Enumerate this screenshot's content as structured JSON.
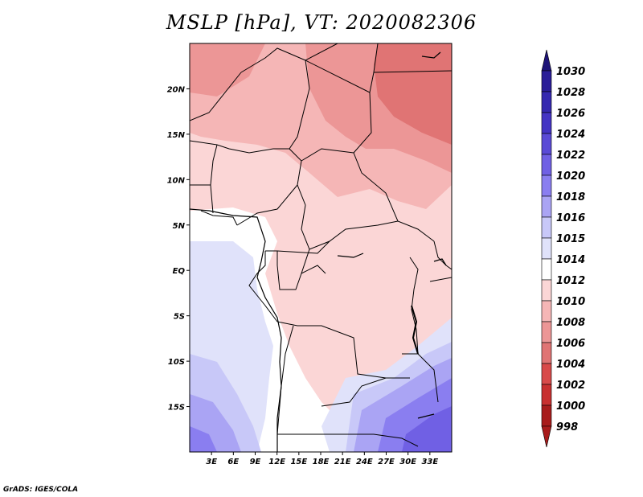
{
  "title": "MSLP [hPa], VT: 2020082306",
  "credit": "GrADS: IGES/COLA",
  "map": {
    "lon_range": [
      0,
      36
    ],
    "lat_range": [
      -20,
      25
    ],
    "lon_ticks": [
      "3E",
      "6E",
      "9E",
      "12E",
      "15E",
      "18E",
      "21E",
      "24E",
      "27E",
      "30E",
      "33E"
    ],
    "lat_ticks": [
      "20N",
      "15N",
      "10N",
      "5N",
      "EQ",
      "5S",
      "10S",
      "15S"
    ]
  },
  "colorbar": {
    "levels": [
      {
        "label": "1030",
        "color": "#1e1478"
      },
      {
        "label": "1028",
        "color": "#2a1d98"
      },
      {
        "label": "1026",
        "color": "#3528b0"
      },
      {
        "label": "1024",
        "color": "#4434c4"
      },
      {
        "label": "1022",
        "color": "#5a4ad6"
      },
      {
        "label": "1020",
        "color": "#7060e4"
      },
      {
        "label": "1018",
        "color": "#8a7ef0"
      },
      {
        "label": "1016",
        "color": "#aaa4f4"
      },
      {
        "label": "1015",
        "color": "#c8c8f8"
      },
      {
        "label": "1014",
        "color": "#e0e2fa"
      },
      {
        "label": "1012",
        "color": "#ffffff"
      },
      {
        "label": "1010",
        "color": "#fbd6d6"
      },
      {
        "label": "1008",
        "color": "#f5b6b6"
      },
      {
        "label": "1006",
        "color": "#ec9696"
      },
      {
        "label": "1004",
        "color": "#e07474"
      },
      {
        "label": "1002",
        "color": "#d84a4a"
      },
      {
        "label": "1000",
        "color": "#c83030"
      },
      {
        "label": "998",
        "color": "#a81c1c"
      }
    ],
    "top_color": "#1e1478",
    "bottom_color": "#a81c1c"
  }
}
